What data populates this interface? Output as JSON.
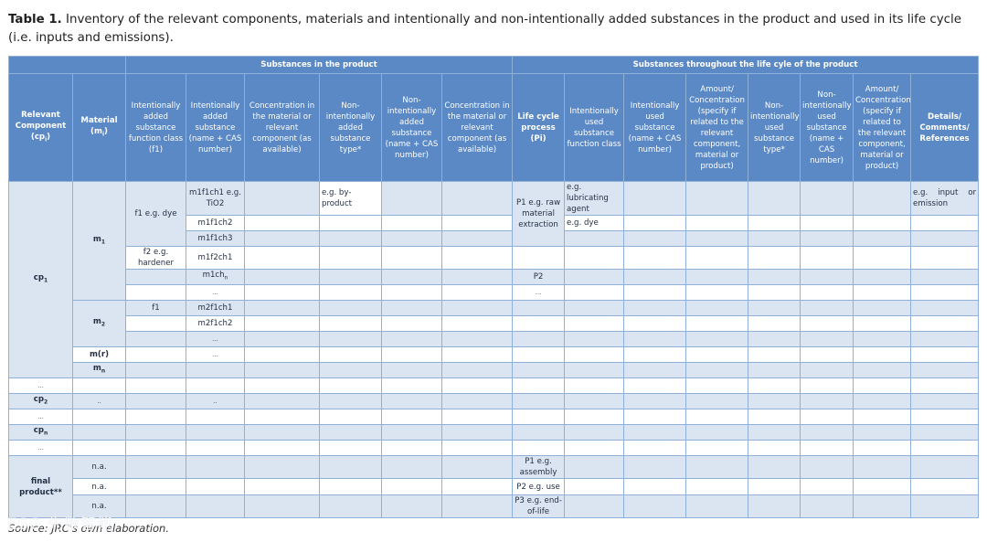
{
  "caption": {
    "label": "Table 1.",
    "text": " Inventory of the relevant components, materials and intentionally and non-intentionally added substances in the product and used in its life cycle (i.e. inputs and emissions)."
  },
  "header": {
    "group_product": "Substances in the product",
    "group_lifecycle": "Substances throughout the life cyle of the product",
    "col_component": "Relevant Component (cpi)",
    "col_material": "Material (mi)",
    "col_f1": "Intentionally added substance function class (f1)",
    "col_ias_cas": "Intentionally added substance (name + CAS number)",
    "col_conc": "Concentration in the material or relevant component (as available)",
    "col_nias_type": "Non-intentionally added substance type*",
    "col_nias_cas": "Non-intentionally added substance (name + CAS number)",
    "col_conc2": "Concentration in the material or relevant component (as available)",
    "col_lcp": "Life cycle process (Pi)",
    "col_ius_class": "Intentionally used substance function class",
    "col_ius_cas": "Intentionally used substance (name + CAS number)",
    "col_amount1": "Amount/ Concentration (specify if related to the relevant component, material or product)",
    "col_nius_type": "Non-intentionally used substance type*",
    "col_nius_cas": "Non-intentionally used substance (name + CAS number)",
    "col_amount2": "Amount/ Concentration (specify if related to the relevant component, material or product)",
    "col_details": "Details/ Comments/ References"
  },
  "body": {
    "cp1": "cp1",
    "m1": "m1",
    "f1_dye": "f1 e.g. dye",
    "f2_hardener": "f2 e.g. hardener",
    "m1f1ch1": "m1f1ch1 e.g. TiO2",
    "m1f1ch2": "m1f1ch2",
    "m1f1ch3": "m1f1ch3",
    "m1f2ch1": "m1f2ch1",
    "m1chn": "m1chn",
    "ellipsis": "...",
    "by_product": "e.g. by-product",
    "p1_raw": "P1 e.g. raw material extraction",
    "p2": "P2",
    "lubricating": "e.g. lubricating agent",
    "dye": "e.g. dye",
    "input_emission": "e.g. input or emission",
    "m2": "m2",
    "f1": "f1",
    "m2f1ch1": "m2f1ch1",
    "m2f1ch2": "m2f1ch2",
    "mr": "m(r)",
    "mn": "mn",
    "cp2": "cp2",
    "dots2": "..",
    "cpn": "cpn",
    "final_product": "final product**",
    "na": "n.a.",
    "p1_assembly": "P1 e.g. assembly",
    "p2_use": "P2 e.g. use",
    "p3_eol": "P3 e.g. end-of-life"
  },
  "source": "Source: JRC's own elaboration.",
  "watermark": "ESG 先数智能",
  "colors": {
    "header_bg": "#5b89c6",
    "row_bg": "#dbe5f1",
    "border": "#8fb0d7"
  }
}
